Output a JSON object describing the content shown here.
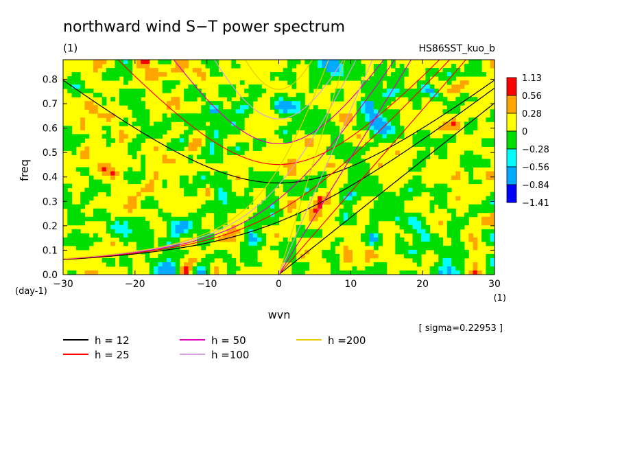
{
  "chart_data": {
    "type": "heatmap",
    "title": "northward wind S−T power spectrum",
    "subtitle_left": "(1)",
    "subtitle_right": "HS86SST_kuo_b",
    "xlabel": "wvn",
    "xunit": "(1)",
    "ylabel": "freq",
    "yunit": "(day-1)",
    "xlim": [
      -30,
      30
    ],
    "ylim": [
      0.0,
      0.88
    ],
    "xticks": [
      -30,
      -20,
      -10,
      0,
      10,
      20,
      30
    ],
    "xtick_labels": [
      "−30",
      "−20",
      "−10",
      "0",
      "10",
      "20",
      "30"
    ],
    "yticks": [
      0.0,
      0.1,
      0.2,
      0.3,
      0.4,
      0.5,
      0.6,
      0.7,
      0.8
    ],
    "ytick_labels": [
      "0.0",
      "0.1",
      "0.2",
      "0.3",
      "0.4",
      "0.5",
      "0.6",
      "0.7",
      "0.8"
    ],
    "colorbar": {
      "labels": [
        "1.13",
        "0.56",
        "0.28",
        "0",
        "−0.28",
        "−0.56",
        "−0.84",
        "−1.41"
      ],
      "colors": [
        "#ff0000",
        "#ffa500",
        "#ffff00",
        "#00dd00",
        "#00ffff",
        "#00aaff",
        "#0000ff"
      ]
    },
    "sigma_text": "[ sigma=0.22953 ]",
    "dispersion_curves": [
      {
        "label": "h = 12",
        "h": 12,
        "color": "#000000"
      },
      {
        "label": "h = 25",
        "h": 25,
        "color": "#ff0000"
      },
      {
        "label": "h = 50",
        "h": 50,
        "color": "#e000c0"
      },
      {
        "label": "h =100",
        "h": 100,
        "color": "#d8a0e0"
      },
      {
        "label": "h =200",
        "h": 200,
        "color": "#e8c800"
      }
    ],
    "grid": false
  }
}
